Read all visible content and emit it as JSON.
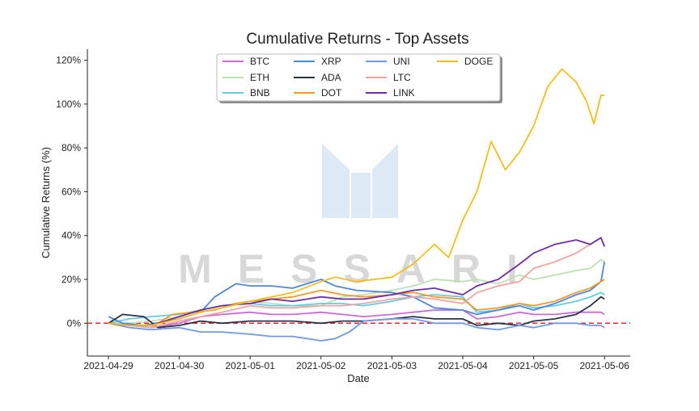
{
  "chart_data": {
    "type": "line",
    "title": "Cumulative Returns - Top Assets",
    "xlabel": "Date",
    "ylabel": "Cumulative Returns (%)",
    "ylim": [
      -15,
      125
    ],
    "xlim": [
      0,
      7.05
    ],
    "x_ticks": [
      {
        "x": 0,
        "label": "2021-04-29"
      },
      {
        "x": 1,
        "label": "2021-04-30"
      },
      {
        "x": 2,
        "label": "2021-05-01"
      },
      {
        "x": 3,
        "label": "2021-05-02"
      },
      {
        "x": 4,
        "label": "2021-05-03"
      },
      {
        "x": 5,
        "label": "2021-05-04"
      },
      {
        "x": 6,
        "label": "2021-05-05"
      },
      {
        "x": 7,
        "label": "2021-05-06"
      }
    ],
    "y_ticks": [
      {
        "y": 0,
        "label": "0%"
      },
      {
        "y": 20,
        "label": "20%"
      },
      {
        "y": 40,
        "label": "40%"
      },
      {
        "y": 60,
        "label": "60%"
      },
      {
        "y": 80,
        "label": "80%"
      },
      {
        "y": 100,
        "label": "100%"
      },
      {
        "y": 120,
        "label": "120%"
      }
    ],
    "reference_line": {
      "y": 0,
      "color": "#e8262a",
      "style": "dashed"
    },
    "grid": false,
    "legend_position": "top-center",
    "watermark": "MESSARI",
    "series": [
      {
        "name": "BTC",
        "color": "#c96bd6",
        "points": [
          [
            0,
            0
          ],
          [
            0.3,
            -1
          ],
          [
            0.6,
            -2
          ],
          [
            1,
            0
          ],
          [
            1.3,
            3
          ],
          [
            1.6,
            4
          ],
          [
            2,
            5
          ],
          [
            2.3,
            4
          ],
          [
            2.6,
            4
          ],
          [
            3,
            5
          ],
          [
            3.3,
            4
          ],
          [
            3.6,
            3
          ],
          [
            4,
            4
          ],
          [
            4.3,
            5
          ],
          [
            4.6,
            6
          ],
          [
            5,
            6
          ],
          [
            5.2,
            2
          ],
          [
            5.5,
            3
          ],
          [
            5.8,
            5
          ],
          [
            6,
            4
          ],
          [
            6.3,
            4
          ],
          [
            6.6,
            5
          ],
          [
            6.8,
            5
          ],
          [
            6.95,
            5
          ],
          [
            7,
            4
          ]
        ]
      },
      {
        "name": "ETH",
        "color": "#bfe0b3",
        "points": [
          [
            0,
            0
          ],
          [
            0.3,
            0
          ],
          [
            0.6,
            1
          ],
          [
            1,
            3
          ],
          [
            1.3,
            6
          ],
          [
            1.6,
            8
          ],
          [
            2,
            10
          ],
          [
            2.3,
            9
          ],
          [
            2.6,
            8
          ],
          [
            3,
            8
          ],
          [
            3.3,
            12
          ],
          [
            3.6,
            13
          ],
          [
            4,
            15
          ],
          [
            4.3,
            17
          ],
          [
            4.6,
            20
          ],
          [
            5,
            19
          ],
          [
            5.2,
            20
          ],
          [
            5.5,
            18
          ],
          [
            5.8,
            22
          ],
          [
            6,
            20
          ],
          [
            6.3,
            22
          ],
          [
            6.6,
            24
          ],
          [
            6.8,
            25
          ],
          [
            6.95,
            29
          ],
          [
            7,
            28
          ]
        ]
      },
      {
        "name": "BNB",
        "color": "#5fcde8",
        "points": [
          [
            0,
            0
          ],
          [
            0.3,
            2
          ],
          [
            0.6,
            3
          ],
          [
            1,
            4
          ],
          [
            1.3,
            6
          ],
          [
            1.6,
            8
          ],
          [
            2,
            9
          ],
          [
            2.3,
            8
          ],
          [
            2.6,
            8
          ],
          [
            3,
            9
          ],
          [
            3.3,
            9
          ],
          [
            3.6,
            8
          ],
          [
            4,
            10
          ],
          [
            4.3,
            12
          ],
          [
            4.6,
            13
          ],
          [
            5,
            12
          ],
          [
            5.2,
            5
          ],
          [
            5.5,
            6
          ],
          [
            5.8,
            9
          ],
          [
            6,
            7
          ],
          [
            6.3,
            8
          ],
          [
            6.6,
            10
          ],
          [
            6.8,
            12
          ],
          [
            6.95,
            14
          ],
          [
            7,
            13
          ]
        ]
      },
      {
        "name": "XRP",
        "color": "#4c86e4",
        "points": [
          [
            0,
            3
          ],
          [
            0.2,
            0
          ],
          [
            0.5,
            -1
          ],
          [
            1,
            2
          ],
          [
            1.3,
            5
          ],
          [
            1.5,
            12
          ],
          [
            1.8,
            18
          ],
          [
            2,
            17
          ],
          [
            2.3,
            17
          ],
          [
            2.6,
            16
          ],
          [
            3,
            20
          ],
          [
            3.2,
            17
          ],
          [
            3.5,
            15
          ],
          [
            4,
            14
          ],
          [
            4.3,
            12
          ],
          [
            4.6,
            7
          ],
          [
            5,
            6
          ],
          [
            5.2,
            4
          ],
          [
            5.5,
            6
          ],
          [
            5.8,
            8
          ],
          [
            6,
            6
          ],
          [
            6.3,
            9
          ],
          [
            6.6,
            13
          ],
          [
            6.8,
            15
          ],
          [
            6.95,
            19
          ],
          [
            7,
            28
          ]
        ]
      },
      {
        "name": "ADA",
        "color": "#2a3347",
        "points": [
          [
            0,
            0
          ],
          [
            0.2,
            4
          ],
          [
            0.5,
            3
          ],
          [
            0.7,
            -2
          ],
          [
            1,
            -1
          ],
          [
            1.3,
            1
          ],
          [
            1.6,
            0
          ],
          [
            2,
            1
          ],
          [
            2.3,
            1
          ],
          [
            2.6,
            1
          ],
          [
            3,
            0
          ],
          [
            3.3,
            1
          ],
          [
            3.6,
            1
          ],
          [
            4,
            2
          ],
          [
            4.3,
            3
          ],
          [
            4.6,
            2
          ],
          [
            5,
            2
          ],
          [
            5.2,
            -1
          ],
          [
            5.5,
            0
          ],
          [
            5.8,
            -1
          ],
          [
            6,
            1
          ],
          [
            6.3,
            2
          ],
          [
            6.6,
            4
          ],
          [
            6.8,
            8
          ],
          [
            6.95,
            12
          ],
          [
            7,
            11
          ]
        ]
      },
      {
        "name": "DOT",
        "color": "#f29a24",
        "points": [
          [
            0,
            0
          ],
          [
            0.3,
            -1
          ],
          [
            0.6,
            -2
          ],
          [
            0.9,
            4
          ],
          [
            1.2,
            5
          ],
          [
            1.5,
            6
          ],
          [
            1.8,
            9
          ],
          [
            2,
            10
          ],
          [
            2.3,
            11
          ],
          [
            2.6,
            12
          ],
          [
            3,
            15
          ],
          [
            3.3,
            13
          ],
          [
            3.6,
            12
          ],
          [
            4,
            13
          ],
          [
            4.3,
            14
          ],
          [
            4.6,
            12
          ],
          [
            5,
            11
          ],
          [
            5.2,
            6
          ],
          [
            5.5,
            7
          ],
          [
            5.8,
            9
          ],
          [
            6,
            8
          ],
          [
            6.3,
            10
          ],
          [
            6.6,
            14
          ],
          [
            6.8,
            16
          ],
          [
            6.95,
            19
          ],
          [
            7,
            20
          ]
        ]
      },
      {
        "name": "UNI",
        "color": "#6f98ec",
        "points": [
          [
            0,
            0
          ],
          [
            0.3,
            -2
          ],
          [
            0.6,
            -3
          ],
          [
            1,
            -2
          ],
          [
            1.3,
            -4
          ],
          [
            1.6,
            -4
          ],
          [
            2,
            -5
          ],
          [
            2.3,
            -6
          ],
          [
            2.6,
            -6
          ],
          [
            3,
            -8
          ],
          [
            3.2,
            -7
          ],
          [
            3.4,
            -4
          ],
          [
            3.6,
            1
          ],
          [
            4,
            2
          ],
          [
            4.3,
            2
          ],
          [
            4.6,
            0
          ],
          [
            5,
            0
          ],
          [
            5.2,
            -2
          ],
          [
            5.5,
            -3
          ],
          [
            5.8,
            -1
          ],
          [
            6,
            -2
          ],
          [
            6.3,
            0
          ],
          [
            6.6,
            0
          ],
          [
            6.8,
            -1
          ],
          [
            6.95,
            -1
          ],
          [
            7,
            -2
          ]
        ]
      },
      {
        "name": "LTC",
        "color": "#f2a3a0",
        "points": [
          [
            0,
            0
          ],
          [
            0.3,
            -1
          ],
          [
            0.6,
            -2
          ],
          [
            1,
            1
          ],
          [
            1.3,
            3
          ],
          [
            1.6,
            5
          ],
          [
            2,
            8
          ],
          [
            2.3,
            7
          ],
          [
            2.6,
            7
          ],
          [
            3,
            8
          ],
          [
            3.3,
            8
          ],
          [
            3.6,
            9
          ],
          [
            4,
            11
          ],
          [
            4.3,
            12
          ],
          [
            4.6,
            11
          ],
          [
            5,
            9
          ],
          [
            5.2,
            14
          ],
          [
            5.5,
            17
          ],
          [
            5.8,
            19
          ],
          [
            6,
            25
          ],
          [
            6.3,
            28
          ],
          [
            6.6,
            32
          ],
          [
            6.8,
            36
          ],
          [
            6.95,
            39
          ],
          [
            7,
            35
          ]
        ]
      },
      {
        "name": "LINK",
        "color": "#6b2ea8",
        "points": [
          [
            0,
            0
          ],
          [
            0.3,
            -1
          ],
          [
            0.6,
            -1
          ],
          [
            1,
            3
          ],
          [
            1.3,
            6
          ],
          [
            1.6,
            8
          ],
          [
            2,
            9
          ],
          [
            2.3,
            11
          ],
          [
            2.6,
            10
          ],
          [
            3,
            12
          ],
          [
            3.3,
            11
          ],
          [
            3.6,
            11
          ],
          [
            4,
            13
          ],
          [
            4.3,
            15
          ],
          [
            4.6,
            16
          ],
          [
            5,
            13
          ],
          [
            5.2,
            17
          ],
          [
            5.5,
            20
          ],
          [
            5.8,
            27
          ],
          [
            6,
            32
          ],
          [
            6.3,
            36
          ],
          [
            6.6,
            38
          ],
          [
            6.8,
            36
          ],
          [
            6.95,
            39
          ],
          [
            7,
            35
          ]
        ]
      },
      {
        "name": "DOGE",
        "color": "#f7be1a",
        "points": [
          [
            0,
            0
          ],
          [
            0.3,
            -1
          ],
          [
            0.6,
            -1
          ],
          [
            1,
            2
          ],
          [
            1.3,
            5
          ],
          [
            1.6,
            7
          ],
          [
            2,
            10
          ],
          [
            2.3,
            12
          ],
          [
            2.6,
            14
          ],
          [
            3,
            19
          ],
          [
            3.2,
            21
          ],
          [
            3.5,
            19
          ],
          [
            4,
            21
          ],
          [
            4.3,
            27
          ],
          [
            4.6,
            36
          ],
          [
            4.8,
            30
          ],
          [
            5,
            47
          ],
          [
            5.2,
            60
          ],
          [
            5.4,
            83
          ],
          [
            5.6,
            70
          ],
          [
            5.8,
            78
          ],
          [
            6,
            90
          ],
          [
            6.2,
            108
          ],
          [
            6.4,
            116
          ],
          [
            6.6,
            110
          ],
          [
            6.75,
            101
          ],
          [
            6.85,
            91
          ],
          [
            6.95,
            104
          ],
          [
            7,
            104
          ]
        ]
      }
    ]
  }
}
